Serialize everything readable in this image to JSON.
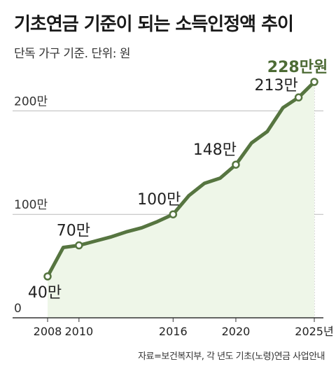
{
  "title": "기초연금 기준이 되는 소득인정액 추이",
  "subtitle": "단독 가구 기준. 단위: 원",
  "source": "자료=보건복지부, 각 년도 기초(노령)연금 사업안내",
  "colors": {
    "line": "#567540",
    "area": "#eef6e8",
    "grid": "#bbbbbb",
    "highlight_label": "#4d6b35"
  },
  "chart_data": {
    "type": "area",
    "unit": "만원",
    "x": [
      2008,
      2009,
      2010,
      2011,
      2012,
      2013,
      2014,
      2015,
      2016,
      2017,
      2018,
      2019,
      2020,
      2021,
      2022,
      2023,
      2024,
      2025
    ],
    "values": [
      40,
      68,
      70,
      74,
      78,
      83,
      87,
      93,
      100,
      118,
      130,
      135,
      148,
      169,
      180,
      203,
      213,
      228
    ],
    "y_ticks": [
      0,
      100,
      200
    ],
    "y_tick_labels": [
      "0",
      "100만",
      "200만"
    ],
    "x_tick_labels": [
      "2008",
      "2010",
      "2016",
      "2020",
      "2025년"
    ],
    "x_tick_values": [
      2008,
      2010,
      2016,
      2020,
      2025
    ],
    "ylim": [
      0,
      228
    ],
    "grid": true,
    "annotations": [
      {
        "x": 2008,
        "y": 40,
        "label": "40만"
      },
      {
        "x": 2010,
        "y": 70,
        "label": "70만"
      },
      {
        "x": 2016,
        "y": 100,
        "label": "100만"
      },
      {
        "x": 2020,
        "y": 148,
        "label": "148만"
      },
      {
        "x": 2024,
        "y": 213,
        "label": "213만"
      },
      {
        "x": 2025,
        "y": 228,
        "label": "228만원"
      }
    ]
  }
}
